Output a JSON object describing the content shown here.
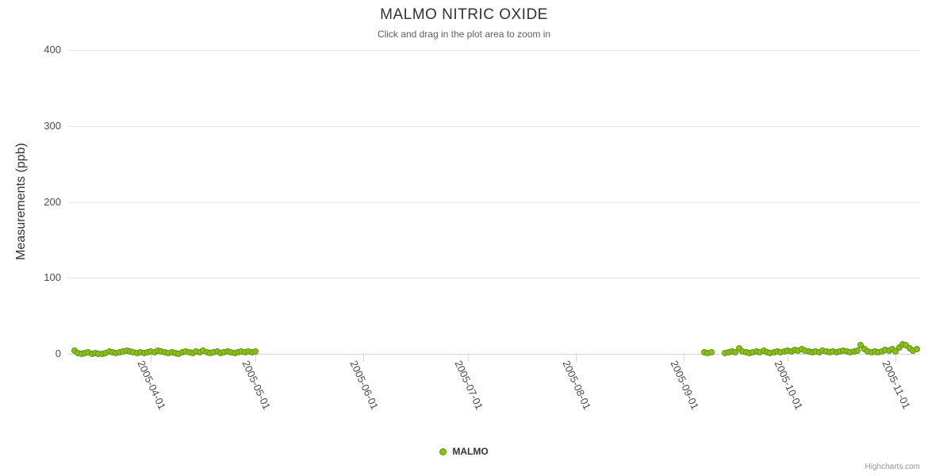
{
  "header": {
    "title": "MALMO NITRIC OXIDE",
    "subtitle": "Click and drag in the plot area to zoom in"
  },
  "legend": {
    "items": [
      {
        "label": "MALMO"
      }
    ]
  },
  "credit": {
    "label": "Highcharts.com"
  },
  "chart_data": {
    "type": "scatter",
    "title": "MALMO NITRIC OXIDE",
    "subtitle": "Click and drag in the plot area to zoom in",
    "xlabel": "",
    "ylabel": "Measurements (ppb)",
    "ylim": [
      0,
      400
    ],
    "yticks": [
      0,
      100,
      200,
      300,
      400
    ],
    "xticks": [
      "2005-04-01",
      "2005-05-01",
      "2005-06-01",
      "2005-07-01",
      "2005-08-01",
      "2005-09-01",
      "2005-10-01",
      "2005-11-01"
    ],
    "x_range": [
      "2005-03-08",
      "2005-11-08"
    ],
    "grid": true,
    "legend_position": "bottom-center",
    "colors": {
      "marker_fill": "#8bc119",
      "marker_stroke": "#63930f",
      "gridline": "#e6e6e6",
      "axis_line": "#ccd6eb",
      "tick": "#ccd6eb",
      "title": "#333333",
      "subtitle": "#606060",
      "labels": "#4d4d4d"
    },
    "series": [
      {
        "name": "MALMO",
        "points": [
          [
            "2005-03-10",
            4
          ],
          [
            "2005-03-11",
            1
          ],
          [
            "2005-03-12",
            0
          ],
          [
            "2005-03-13",
            1
          ],
          [
            "2005-03-14",
            2
          ],
          [
            "2005-03-15",
            0
          ],
          [
            "2005-03-16",
            1
          ],
          [
            "2005-03-17",
            0
          ],
          [
            "2005-03-18",
            0
          ],
          [
            "2005-03-19",
            1
          ],
          [
            "2005-03-20",
            3
          ],
          [
            "2005-03-21",
            2
          ],
          [
            "2005-03-22",
            1
          ],
          [
            "2005-03-23",
            2
          ],
          [
            "2005-03-24",
            3
          ],
          [
            "2005-03-25",
            4
          ],
          [
            "2005-03-26",
            3
          ],
          [
            "2005-03-27",
            2
          ],
          [
            "2005-03-28",
            1
          ],
          [
            "2005-03-29",
            2
          ],
          [
            "2005-03-30",
            1
          ],
          [
            "2005-03-31",
            2
          ],
          [
            "2005-04-01",
            3
          ],
          [
            "2005-04-02",
            2
          ],
          [
            "2005-04-03",
            4
          ],
          [
            "2005-04-04",
            3
          ],
          [
            "2005-04-05",
            2
          ],
          [
            "2005-04-06",
            1
          ],
          [
            "2005-04-07",
            2
          ],
          [
            "2005-04-08",
            1
          ],
          [
            "2005-04-09",
            0
          ],
          [
            "2005-04-10",
            2
          ],
          [
            "2005-04-11",
            3
          ],
          [
            "2005-04-12",
            2
          ],
          [
            "2005-04-13",
            1
          ],
          [
            "2005-04-14",
            3
          ],
          [
            "2005-04-15",
            2
          ],
          [
            "2005-04-16",
            4
          ],
          [
            "2005-04-17",
            2
          ],
          [
            "2005-04-18",
            1
          ],
          [
            "2005-04-19",
            2
          ],
          [
            "2005-04-20",
            3
          ],
          [
            "2005-04-21",
            1
          ],
          [
            "2005-04-22",
            2
          ],
          [
            "2005-04-23",
            3
          ],
          [
            "2005-04-24",
            2
          ],
          [
            "2005-04-25",
            1
          ],
          [
            "2005-04-26",
            2
          ],
          [
            "2005-04-27",
            3
          ],
          [
            "2005-04-28",
            2
          ],
          [
            "2005-04-29",
            3
          ],
          [
            "2005-04-30",
            2
          ],
          [
            "2005-05-01",
            3
          ],
          [
            "2005-09-07",
            2
          ],
          [
            "2005-09-08",
            1
          ],
          [
            "2005-09-09",
            2
          ],
          [
            "2005-09-13",
            1
          ],
          [
            "2005-09-14",
            2
          ],
          [
            "2005-09-15",
            3
          ],
          [
            "2005-09-16",
            2
          ],
          [
            "2005-09-17",
            7
          ],
          [
            "2005-09-18",
            3
          ],
          [
            "2005-09-19",
            2
          ],
          [
            "2005-09-20",
            1
          ],
          [
            "2005-09-21",
            2
          ],
          [
            "2005-09-22",
            3
          ],
          [
            "2005-09-23",
            2
          ],
          [
            "2005-09-24",
            4
          ],
          [
            "2005-09-25",
            2
          ],
          [
            "2005-09-26",
            1
          ],
          [
            "2005-09-27",
            2
          ],
          [
            "2005-09-28",
            3
          ],
          [
            "2005-09-29",
            2
          ],
          [
            "2005-09-30",
            3
          ],
          [
            "2005-10-01",
            4
          ],
          [
            "2005-10-02",
            3
          ],
          [
            "2005-10-03",
            5
          ],
          [
            "2005-10-04",
            4
          ],
          [
            "2005-10-05",
            6
          ],
          [
            "2005-10-06",
            4
          ],
          [
            "2005-10-07",
            3
          ],
          [
            "2005-10-08",
            2
          ],
          [
            "2005-10-09",
            3
          ],
          [
            "2005-10-10",
            2
          ],
          [
            "2005-10-11",
            4
          ],
          [
            "2005-10-12",
            3
          ],
          [
            "2005-10-13",
            2
          ],
          [
            "2005-10-14",
            3
          ],
          [
            "2005-10-15",
            2
          ],
          [
            "2005-10-16",
            3
          ],
          [
            "2005-10-17",
            4
          ],
          [
            "2005-10-18",
            3
          ],
          [
            "2005-10-19",
            2
          ],
          [
            "2005-10-20",
            3
          ],
          [
            "2005-10-21",
            4
          ],
          [
            "2005-10-22",
            11
          ],
          [
            "2005-10-23",
            6
          ],
          [
            "2005-10-24",
            3
          ],
          [
            "2005-10-25",
            2
          ],
          [
            "2005-10-26",
            3
          ],
          [
            "2005-10-27",
            2
          ],
          [
            "2005-10-28",
            3
          ],
          [
            "2005-10-29",
            5
          ],
          [
            "2005-10-30",
            4
          ],
          [
            "2005-10-31",
            6
          ],
          [
            "2005-11-01",
            3
          ],
          [
            "2005-11-02",
            8
          ],
          [
            "2005-11-03",
            13
          ],
          [
            "2005-11-04",
            11
          ],
          [
            "2005-11-05",
            7
          ],
          [
            "2005-11-06",
            4
          ],
          [
            "2005-11-07",
            6
          ]
        ]
      }
    ]
  }
}
